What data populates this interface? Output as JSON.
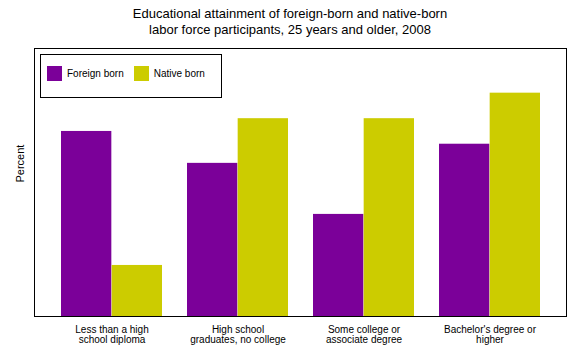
{
  "chart_data": {
    "type": "bar",
    "title": "Educational attainment of foreign-born and native-born\nlabor force participants, 25 years and older, 2008",
    "ylabel": "Percent",
    "categories": [
      "Less than a high\nschool diploma",
      "High school\ngraduates, no college",
      "Some college or\nassociate degree",
      "Bachelor's degree or\nhigher"
    ],
    "series": [
      {
        "name": "Foreign born",
        "color": "#7B0099",
        "values": [
          29,
          24,
          16,
          27
        ]
      },
      {
        "name": "Native born",
        "color": "#CCCC00",
        "values": [
          8,
          31,
          31,
          35
        ]
      }
    ],
    "ylim": [
      0,
      42
    ],
    "yticks": [],
    "legend": "upper left",
    "tick_labels": "x"
  }
}
